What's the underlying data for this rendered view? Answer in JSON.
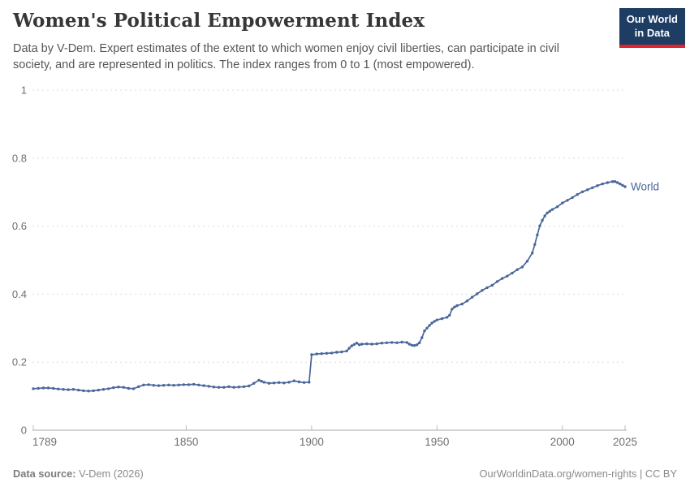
{
  "header": {
    "title": "Women's Political Empowerment Index",
    "subtitle": "Data by V-Dem. Expert estimates of the extent to which women enjoy civil liberties, can participate in civil society, and are represented in politics. The index ranges from 0 to 1 (most empowered).",
    "logo": {
      "line1": "Our World",
      "line2": "in Data",
      "bg_color": "#1d3d63",
      "accent_color": "#e0222c"
    }
  },
  "footer": {
    "source_label": "Data source:",
    "source_value": "V-Dem (2026)",
    "attribution": "OurWorldinData.org/women-rights | CC BY"
  },
  "chart_data": {
    "type": "line",
    "title": "Women's Political Empowerment Index",
    "xlabel": "",
    "ylabel": "",
    "xlim": [
      1789,
      2025
    ],
    "ylim": [
      0,
      1
    ],
    "x_ticks": [
      1789,
      1850,
      1900,
      1950,
      2000,
      2025
    ],
    "y_ticks": [
      0,
      0.2,
      0.4,
      0.6,
      0.8,
      1
    ],
    "grid": "horizontal-dashed",
    "legend_position": "end-of-line-label",
    "colors": {
      "line": "#4a669a",
      "grid": "#dcdcdc",
      "axis": "#a8a8a8",
      "tick_label": "#6e6e6e"
    },
    "series": [
      {
        "name": "World",
        "color": "#4a669a",
        "points": [
          [
            1789,
            0.122
          ],
          [
            1791,
            0.123
          ],
          [
            1793,
            0.124
          ],
          [
            1795,
            0.124
          ],
          [
            1797,
            0.123
          ],
          [
            1799,
            0.121
          ],
          [
            1801,
            0.12
          ],
          [
            1803,
            0.119
          ],
          [
            1805,
            0.12
          ],
          [
            1807,
            0.118
          ],
          [
            1809,
            0.116
          ],
          [
            1811,
            0.115
          ],
          [
            1813,
            0.116
          ],
          [
            1815,
            0.118
          ],
          [
            1817,
            0.12
          ],
          [
            1819,
            0.122
          ],
          [
            1821,
            0.125
          ],
          [
            1823,
            0.127
          ],
          [
            1825,
            0.126
          ],
          [
            1827,
            0.123
          ],
          [
            1829,
            0.122
          ],
          [
            1831,
            0.128
          ],
          [
            1833,
            0.133
          ],
          [
            1835,
            0.134
          ],
          [
            1837,
            0.132
          ],
          [
            1839,
            0.131
          ],
          [
            1841,
            0.132
          ],
          [
            1843,
            0.133
          ],
          [
            1845,
            0.132
          ],
          [
            1847,
            0.133
          ],
          [
            1849,
            0.134
          ],
          [
            1851,
            0.134
          ],
          [
            1853,
            0.135
          ],
          [
            1855,
            0.133
          ],
          [
            1857,
            0.131
          ],
          [
            1859,
            0.129
          ],
          [
            1861,
            0.127
          ],
          [
            1863,
            0.126
          ],
          [
            1865,
            0.126
          ],
          [
            1867,
            0.128
          ],
          [
            1869,
            0.126
          ],
          [
            1871,
            0.127
          ],
          [
            1873,
            0.128
          ],
          [
            1875,
            0.13
          ],
          [
            1877,
            0.138
          ],
          [
            1879,
            0.147
          ],
          [
            1880,
            0.144
          ],
          [
            1881,
            0.141
          ],
          [
            1883,
            0.138
          ],
          [
            1885,
            0.139
          ],
          [
            1887,
            0.14
          ],
          [
            1889,
            0.139
          ],
          [
            1891,
            0.141
          ],
          [
            1893,
            0.145
          ],
          [
            1895,
            0.142
          ],
          [
            1897,
            0.14
          ],
          [
            1899,
            0.141
          ],
          [
            1900,
            0.222
          ],
          [
            1902,
            0.224
          ],
          [
            1904,
            0.225
          ],
          [
            1906,
            0.226
          ],
          [
            1908,
            0.227
          ],
          [
            1910,
            0.229
          ],
          [
            1912,
            0.23
          ],
          [
            1914,
            0.233
          ],
          [
            1915,
            0.241
          ],
          [
            1916,
            0.248
          ],
          [
            1917,
            0.252
          ],
          [
            1918,
            0.256
          ],
          [
            1919,
            0.251
          ],
          [
            1920,
            0.253
          ],
          [
            1922,
            0.254
          ],
          [
            1924,
            0.253
          ],
          [
            1926,
            0.254
          ],
          [
            1928,
            0.256
          ],
          [
            1930,
            0.257
          ],
          [
            1932,
            0.258
          ],
          [
            1934,
            0.257
          ],
          [
            1936,
            0.259
          ],
          [
            1938,
            0.258
          ],
          [
            1939,
            0.253
          ],
          [
            1940,
            0.25
          ],
          [
            1941,
            0.249
          ],
          [
            1942,
            0.251
          ],
          [
            1943,
            0.257
          ],
          [
            1944,
            0.272
          ],
          [
            1945,
            0.292
          ],
          [
            1946,
            0.3
          ],
          [
            1947,
            0.308
          ],
          [
            1948,
            0.315
          ],
          [
            1949,
            0.32
          ],
          [
            1950,
            0.324
          ],
          [
            1952,
            0.328
          ],
          [
            1954,
            0.332
          ],
          [
            1955,
            0.338
          ],
          [
            1956,
            0.356
          ],
          [
            1957,
            0.362
          ],
          [
            1958,
            0.366
          ],
          [
            1960,
            0.371
          ],
          [
            1962,
            0.38
          ],
          [
            1964,
            0.391
          ],
          [
            1966,
            0.401
          ],
          [
            1968,
            0.411
          ],
          [
            1970,
            0.419
          ],
          [
            1972,
            0.426
          ],
          [
            1974,
            0.437
          ],
          [
            1976,
            0.446
          ],
          [
            1978,
            0.453
          ],
          [
            1980,
            0.462
          ],
          [
            1982,
            0.472
          ],
          [
            1984,
            0.48
          ],
          [
            1986,
            0.497
          ],
          [
            1988,
            0.521
          ],
          [
            1989,
            0.546
          ],
          [
            1990,
            0.574
          ],
          [
            1991,
            0.601
          ],
          [
            1992,
            0.617
          ],
          [
            1993,
            0.63
          ],
          [
            1994,
            0.639
          ],
          [
            1995,
            0.644
          ],
          [
            1996,
            0.649
          ],
          [
            1998,
            0.657
          ],
          [
            2000,
            0.668
          ],
          [
            2002,
            0.676
          ],
          [
            2004,
            0.684
          ],
          [
            2006,
            0.693
          ],
          [
            2008,
            0.701
          ],
          [
            2010,
            0.707
          ],
          [
            2012,
            0.713
          ],
          [
            2014,
            0.719
          ],
          [
            2016,
            0.724
          ],
          [
            2018,
            0.728
          ],
          [
            2020,
            0.731
          ],
          [
            2021,
            0.731
          ],
          [
            2022,
            0.728
          ],
          [
            2023,
            0.724
          ],
          [
            2024,
            0.72
          ],
          [
            2025,
            0.716
          ]
        ]
      }
    ]
  }
}
